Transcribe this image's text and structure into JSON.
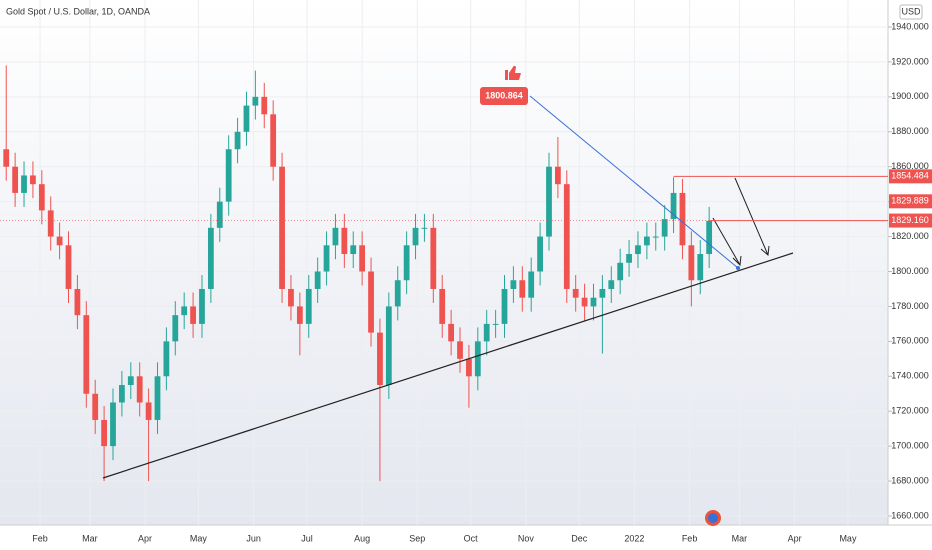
{
  "chart_data": {
    "type": "candlestick",
    "title": "Gold Spot / U.S. Dollar, 1D, OANDA",
    "currency": "USD",
    "x": [
      12,
      17,
      22,
      27,
      32,
      37,
      42,
      47,
      52,
      57,
      62,
      67,
      72,
      77,
      82,
      87,
      92,
      97,
      102,
      107,
      112,
      117,
      122,
      127,
      132,
      137,
      142,
      147,
      152,
      157,
      162,
      167,
      172,
      177,
      182,
      187,
      192,
      197,
      202,
      207,
      212,
      217,
      222,
      227,
      232,
      237,
      242,
      247,
      252,
      257,
      262,
      267,
      272,
      277,
      282,
      287,
      292,
      297,
      302,
      307,
      312,
      317,
      322,
      327,
      332,
      337,
      342,
      347,
      352,
      357,
      362,
      367,
      372,
      377,
      382,
      387,
      392,
      397,
      402,
      407
    ],
    "open": [
      1870,
      1860,
      1845,
      1855,
      1850,
      1835,
      1820,
      1815,
      1790,
      1775,
      1730,
      1715,
      1700,
      1725,
      1735,
      1740,
      1725,
      1715,
      1740,
      1760,
      1775,
      1780,
      1770,
      1790,
      1825,
      1840,
      1870,
      1880,
      1895,
      1900,
      1890,
      1860,
      1790,
      1780,
      1770,
      1790,
      1800,
      1815,
      1825,
      1810,
      1815,
      1800,
      1765,
      1735,
      1780,
      1795,
      1815,
      1825,
      1825,
      1790,
      1770,
      1760,
      1750,
      1740,
      1760,
      1770,
      1770,
      1790,
      1795,
      1785,
      1800,
      1820,
      1860,
      1850,
      1790,
      1785,
      1780,
      1785,
      1790,
      1795,
      1805,
      1810,
      1815,
      1820,
      1820,
      1830,
      1845,
      1815,
      1795,
      1810
    ],
    "high": [
      1918,
      1868,
      1863,
      1863,
      1858,
      1843,
      1828,
      1823,
      1798,
      1783,
      1738,
      1723,
      1733,
      1743,
      1748,
      1748,
      1733,
      1748,
      1768,
      1783,
      1788,
      1788,
      1798,
      1833,
      1848,
      1878,
      1888,
      1903,
      1915,
      1908,
      1898,
      1868,
      1798,
      1788,
      1798,
      1808,
      1823,
      1833,
      1833,
      1823,
      1823,
      1808,
      1773,
      1788,
      1803,
      1823,
      1833,
      1833,
      1833,
      1798,
      1778,
      1768,
      1758,
      1768,
      1778,
      1778,
      1798,
      1803,
      1803,
      1808,
      1828,
      1868,
      1877,
      1858,
      1798,
      1793,
      1793,
      1798,
      1803,
      1813,
      1818,
      1823,
      1828,
      1828,
      1838,
      1854,
      1853,
      1823,
      1818,
      1837
    ],
    "low": [
      1852,
      1837,
      1837,
      1842,
      1827,
      1812,
      1807,
      1782,
      1767,
      1722,
      1707,
      1680,
      1692,
      1717,
      1727,
      1717,
      1680,
      1707,
      1732,
      1752,
      1767,
      1762,
      1762,
      1782,
      1817,
      1832,
      1862,
      1872,
      1887,
      1882,
      1852,
      1782,
      1772,
      1752,
      1762,
      1782,
      1792,
      1807,
      1802,
      1802,
      1792,
      1757,
      1680,
      1727,
      1772,
      1787,
      1807,
      1817,
      1782,
      1762,
      1752,
      1742,
      1722,
      1732,
      1752,
      1762,
      1762,
      1782,
      1777,
      1777,
      1792,
      1812,
      1842,
      1782,
      1777,
      1772,
      1772,
      1753,
      1782,
      1787,
      1797,
      1802,
      1807,
      1812,
      1812,
      1822,
      1807,
      1780,
      1787,
      1802
    ],
    "close": [
      1860,
      1845,
      1855,
      1850,
      1835,
      1820,
      1815,
      1790,
      1775,
      1730,
      1715,
      1700,
      1725,
      1735,
      1740,
      1725,
      1715,
      1740,
      1760,
      1775,
      1780,
      1770,
      1790,
      1825,
      1840,
      1870,
      1880,
      1895,
      1900,
      1890,
      1860,
      1790,
      1780,
      1770,
      1790,
      1800,
      1815,
      1825,
      1810,
      1815,
      1800,
      1765,
      1735,
      1780,
      1795,
      1815,
      1825,
      1825,
      1790,
      1770,
      1760,
      1750,
      1740,
      1760,
      1770,
      1770,
      1790,
      1795,
      1785,
      1800,
      1820,
      1860,
      1850,
      1790,
      1785,
      1780,
      1785,
      1790,
      1795,
      1805,
      1810,
      1815,
      1820,
      1820,
      1830,
      1845,
      1815,
      1795,
      1810,
      1829
    ],
    "up_color": "#26a69a",
    "down_color": "#ef5350",
    "xlim": [
      8.5,
      507.5
    ],
    "xticks": [
      {
        "value": 31,
        "label": "Feb"
      },
      {
        "value": 59,
        "label": "Mar"
      },
      {
        "value": 90,
        "label": "Apr"
      },
      {
        "value": 120,
        "label": "May"
      },
      {
        "value": 151,
        "label": "Jun"
      },
      {
        "value": 181,
        "label": "Jul"
      },
      {
        "value": 212,
        "label": "Aug"
      },
      {
        "value": 243,
        "label": "Sep"
      },
      {
        "value": 273,
        "label": "Oct"
      },
      {
        "value": 304,
        "label": "Nov"
      },
      {
        "value": 334,
        "label": "Dec"
      },
      {
        "value": 365,
        "label": "2022"
      },
      {
        "value": 396,
        "label": "Feb"
      },
      {
        "value": 424,
        "label": "Mar"
      },
      {
        "value": 455,
        "label": "Apr"
      },
      {
        "value": 485,
        "label": "May"
      }
    ],
    "ylim": [
      1660,
      1940
    ],
    "yticks": [
      {
        "value": 1660,
        "label": "1660.000"
      },
      {
        "value": 1680,
        "label": "1680.000"
      },
      {
        "value": 1700,
        "label": "1700.000"
      },
      {
        "value": 1720,
        "label": "1720.000"
      },
      {
        "value": 1740,
        "label": "1740.000"
      },
      {
        "value": 1760,
        "label": "1760.000"
      },
      {
        "value": 1780,
        "label": "1780.000"
      },
      {
        "value": 1800,
        "label": "1800.000"
      },
      {
        "value": 1820,
        "label": "1820.000"
      },
      {
        "value": 1840,
        "label": "1840.000"
      },
      {
        "value": 1860,
        "label": "1860.000"
      },
      {
        "value": 1880,
        "label": "1880.000"
      },
      {
        "value": 1900,
        "label": "1900.000"
      },
      {
        "value": 1920,
        "label": "1920.000"
      },
      {
        "value": 1940,
        "label": "1940.000"
      }
    ],
    "grid": true,
    "price_labels": [
      {
        "value": 1854.484,
        "label": "1854.484"
      },
      {
        "value": 1829.889,
        "label": "1829.889"
      },
      {
        "value": 1829.16,
        "label": "1829.160"
      }
    ],
    "callout": {
      "value": 1800.864,
      "label": "1800.864"
    }
  }
}
